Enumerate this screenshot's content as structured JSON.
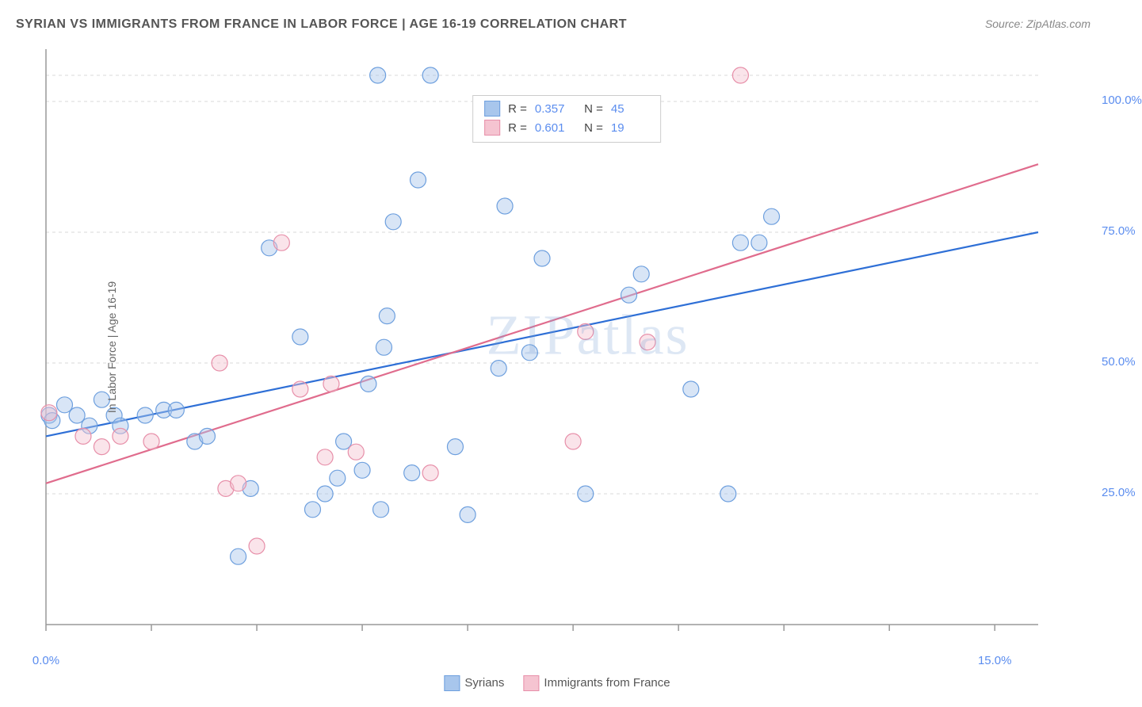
{
  "title": "SYRIAN VS IMMIGRANTS FROM FRANCE IN LABOR FORCE | AGE 16-19 CORRELATION CHART",
  "source": "Source: ZipAtlas.com",
  "ylabel": "In Labor Force | Age 16-19",
  "watermark": "ZIPatlas",
  "chart": {
    "type": "scatter",
    "background_color": "#ffffff",
    "grid_color": "#d8d8d8",
    "axis_color": "#999999",
    "xlim": [
      0,
      16
    ],
    "ylim": [
      0,
      110
    ],
    "xticks": [
      0,
      1.7,
      3.4,
      5.1,
      6.8,
      8.5,
      10.2,
      11.9,
      13.6,
      15.3
    ],
    "yticks_grid": [
      25,
      50,
      75,
      100,
      105
    ],
    "ytick_labels": [
      {
        "v": 25,
        "label": "25.0%"
      },
      {
        "v": 50,
        "label": "50.0%"
      },
      {
        "v": 75,
        "label": "75.0%"
      },
      {
        "v": 100,
        "label": "100.0%"
      }
    ],
    "xtick_labels": [
      {
        "v": 0,
        "label": "0.0%"
      },
      {
        "v": 15.3,
        "label": "15.0%"
      }
    ],
    "marker_radius": 10,
    "marker_fill_opacity": 0.45,
    "marker_stroke_width": 1.2,
    "line_width": 2.2,
    "label_fontsize": 14,
    "tick_fontsize": 15,
    "tick_color": "#5b8def"
  },
  "series": [
    {
      "name": "Syrians",
      "fill": "#a8c6ec",
      "stroke": "#6d9fde",
      "line_color": "#2e6fd6",
      "R": "0.357",
      "N": "45",
      "trend": {
        "x1": 0,
        "y1": 36,
        "x2": 16,
        "y2": 75
      },
      "points": [
        [
          0.05,
          40
        ],
        [
          0.1,
          39
        ],
        [
          0.3,
          42
        ],
        [
          0.5,
          40
        ],
        [
          0.7,
          38
        ],
        [
          0.9,
          43
        ],
        [
          1.1,
          40
        ],
        [
          1.2,
          38
        ],
        [
          1.6,
          40
        ],
        [
          1.9,
          41
        ],
        [
          2.1,
          41
        ],
        [
          2.4,
          35
        ],
        [
          2.6,
          36
        ],
        [
          3.1,
          13
        ],
        [
          3.3,
          26
        ],
        [
          3.6,
          72
        ],
        [
          4.1,
          55
        ],
        [
          4.3,
          22
        ],
        [
          4.5,
          25
        ],
        [
          4.7,
          28
        ],
        [
          4.8,
          35
        ],
        [
          5.1,
          29.5
        ],
        [
          5.2,
          46
        ],
        [
          5.35,
          105
        ],
        [
          5.4,
          22
        ],
        [
          5.45,
          53
        ],
        [
          5.5,
          59
        ],
        [
          5.6,
          77
        ],
        [
          5.9,
          29
        ],
        [
          6.0,
          85
        ],
        [
          6.2,
          105
        ],
        [
          6.6,
          34
        ],
        [
          6.8,
          21
        ],
        [
          7.3,
          49
        ],
        [
          7.4,
          80
        ],
        [
          7.8,
          52
        ],
        [
          8.0,
          70
        ],
        [
          8.7,
          25
        ],
        [
          9.4,
          63
        ],
        [
          9.6,
          67
        ],
        [
          10.4,
          45
        ],
        [
          11.0,
          25
        ],
        [
          11.2,
          73
        ],
        [
          11.5,
          73
        ],
        [
          11.7,
          78
        ]
      ]
    },
    {
      "name": "Immigrants from France",
      "fill": "#f5c4d1",
      "stroke": "#e78fa9",
      "line_color": "#e06c8d",
      "R": "0.601",
      "N": "19",
      "trend": {
        "x1": 0,
        "y1": 27,
        "x2": 16,
        "y2": 88
      },
      "points": [
        [
          0.05,
          40.5
        ],
        [
          0.6,
          36
        ],
        [
          0.9,
          34
        ],
        [
          1.2,
          36
        ],
        [
          1.7,
          35
        ],
        [
          2.8,
          50
        ],
        [
          2.9,
          26
        ],
        [
          3.1,
          27
        ],
        [
          3.4,
          15
        ],
        [
          3.8,
          73
        ],
        [
          4.1,
          45
        ],
        [
          4.5,
          32
        ],
        [
          4.6,
          46
        ],
        [
          5.0,
          33
        ],
        [
          8.5,
          35
        ],
        [
          8.7,
          56
        ],
        [
          9.7,
          54
        ],
        [
          11.2,
          105
        ],
        [
          6.2,
          29
        ]
      ]
    }
  ],
  "legend_bottom": [
    {
      "swatch_fill": "#a8c6ec",
      "swatch_stroke": "#6d9fde",
      "label": "Syrians"
    },
    {
      "swatch_fill": "#f5c4d1",
      "swatch_stroke": "#e78fa9",
      "label": "Immigrants from France"
    }
  ]
}
